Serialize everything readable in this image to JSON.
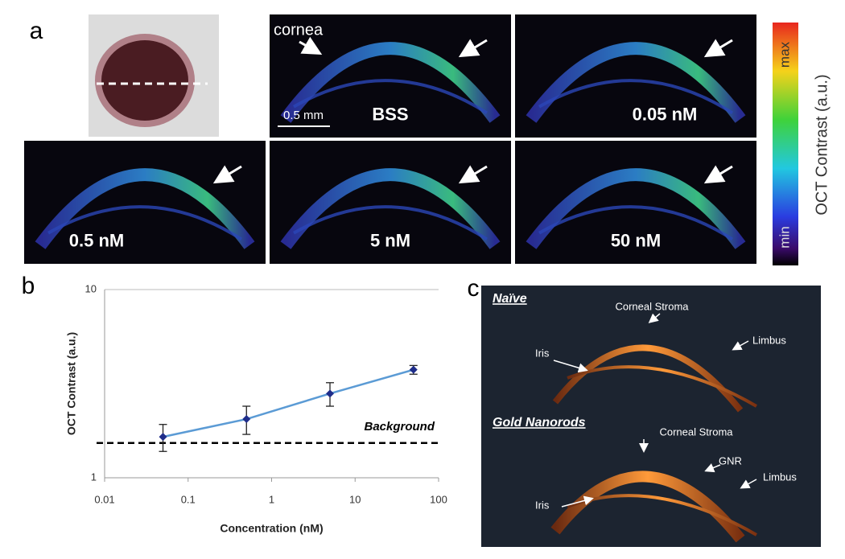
{
  "panel_a": {
    "label": "a",
    "cornea_label": "cornea",
    "scale_bar": "0.5 mm",
    "images": [
      "BSS",
      "0.05 nM",
      "0.5 nM",
      "5 nM",
      "50 nM"
    ],
    "colorbar": {
      "title": "OCT Contrast (a.u.)",
      "max": "max",
      "min": "min"
    }
  },
  "panel_b_label": "b",
  "chart_data": {
    "type": "line",
    "x_label": "Concentration (nM)",
    "y_label": "OCT Contrast (a.u.)",
    "x": [
      0.05,
      0.5,
      5,
      50
    ],
    "series": [
      {
        "color": "#5b9bd5",
        "marker_color": "#1f2d8a",
        "values": [
          1.65,
          2.05,
          2.8,
          3.75
        ],
        "errors": [
          0.27,
          0.35,
          0.4,
          0.2
        ]
      }
    ],
    "xlim": [
      0.01,
      100
    ],
    "xticks": [
      0.01,
      0.1,
      1,
      10,
      100
    ],
    "xscale": "log",
    "ylim": [
      1,
      10
    ],
    "yticks": [
      1,
      10
    ],
    "yscale": "log",
    "grid": true,
    "reference_line": {
      "value": 1.53,
      "label": "Background"
    }
  },
  "panel_c": {
    "label": "c",
    "groups": [
      {
        "title": "Naïve",
        "annotations": [
          "Corneal Stroma",
          "Limbus",
          "Iris"
        ]
      },
      {
        "title": "Gold Nanorods",
        "annotations": [
          "Corneal Stroma",
          "GNR",
          "Limbus",
          "Iris"
        ]
      }
    ]
  }
}
